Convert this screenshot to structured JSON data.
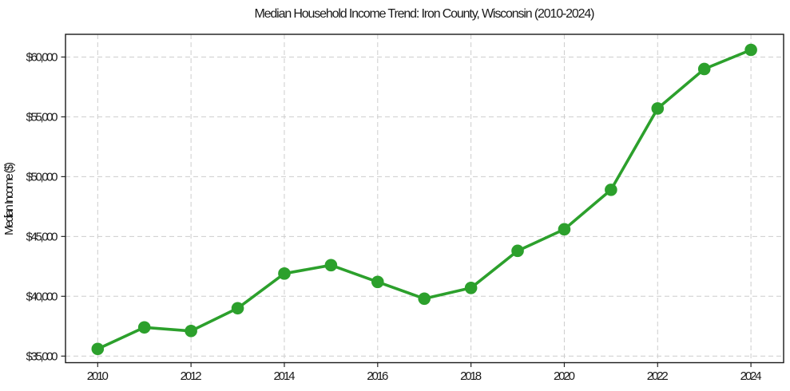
{
  "chart_data": {
    "type": "line",
    "title": "Median Household Income Trend: Iron County, Wisconsin (2010-2024)",
    "xlabel": "",
    "ylabel": "Median Income ($)",
    "series": [
      {
        "name": "Median Household Income",
        "x": [
          2010,
          2011,
          2012,
          2013,
          2014,
          2015,
          2016,
          2017,
          2018,
          2019,
          2020,
          2021,
          2022,
          2023,
          2024
        ],
        "y": [
          35600,
          37400,
          37100,
          39000,
          41900,
          42600,
          41200,
          39800,
          40700,
          43800,
          45600,
          48900,
          55700,
          59000,
          60600
        ]
      }
    ],
    "line_color": "#2ca02c",
    "marker": "circle",
    "marker_color": "#2ca02c",
    "grid": true,
    "grid_style": "dashed",
    "legend_position": "none",
    "xlim": [
      2009.31,
      2024.7
    ],
    "ylim": [
      34450,
      61900
    ],
    "x_ticks": [
      2010,
      2012,
      2014,
      2016,
      2018,
      2020,
      2022,
      2024
    ],
    "x_tick_labels": [
      "2010",
      "2012",
      "2014",
      "2016",
      "2018",
      "2020",
      "2022",
      "2024"
    ],
    "y_ticks": [
      35000,
      40000,
      45000,
      50000,
      55000,
      60000
    ],
    "y_tick_labels": [
      "$35,000",
      "$40,000",
      "$45,000",
      "$50,000",
      "$55,000",
      "$60,000"
    ]
  }
}
